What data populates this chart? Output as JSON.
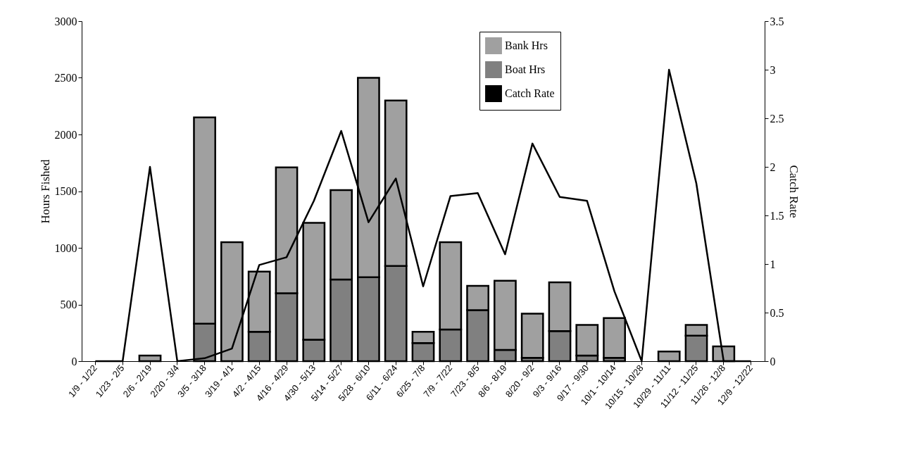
{
  "chart_data": {
    "type": "bar",
    "stacked": true,
    "ylabel": "Hours Fished",
    "y2label": "Catch Rate",
    "categories": [
      "1/9 - 1/22",
      "1/23 - 2/5",
      "2/6 - 2/19",
      "2/20 - 3/4",
      "3/5 - 3/18",
      "3/19 - 4/1",
      "4/2 - 4/15",
      "4/16 - 4/29",
      "4/30 - 5/13",
      "5/14 - 5/27",
      "5/28 - 6/10",
      "6/11 - 6/24",
      "6/25 - 7/8",
      "7/9 - 7/22",
      "7/23 - 8/5",
      "8/6 - 8/19",
      "8/20 - 9/2",
      "9/3 - 9/16",
      "9/17 - 9/30",
      "10/1 - 10/14",
      "10/15 - 10/28",
      "10/29 - 11/11",
      "11/12 - 11/25",
      "11/26 - 12/8",
      "12/9 - 12/22"
    ],
    "series": [
      {
        "name": "Boat Hrs",
        "color": "#808080",
        "values": [
          null,
          null,
          null,
          null,
          330,
          null,
          260,
          600,
          190,
          720,
          740,
          840,
          160,
          280,
          450,
          100,
          30,
          265,
          50,
          30,
          null,
          null,
          225,
          null,
          null
        ]
      },
      {
        "name": "Bank Hrs",
        "color": "#a0a0a0",
        "values": [
          null,
          null,
          50,
          null,
          1820,
          1050,
          530,
          1110,
          1030,
          790,
          1760,
          1460,
          100,
          770,
          215,
          610,
          390,
          430,
          270,
          350,
          null,
          85,
          95,
          130,
          null
        ]
      },
      {
        "name": "Catch Rate",
        "type": "line",
        "axis": "y2",
        "color": "#000000",
        "values": [
          0,
          0,
          2.0,
          0,
          0.03,
          0.13,
          0.99,
          1.07,
          1.65,
          2.37,
          1.43,
          1.88,
          0.77,
          1.7,
          1.73,
          1.1,
          2.24,
          1.69,
          1.65,
          0.72,
          0,
          3.0,
          1.83,
          0,
          0
        ]
      }
    ],
    "ylim": [
      0,
      3000
    ],
    "yticks": [
      0,
      500,
      1000,
      1500,
      2000,
      2500,
      3000
    ],
    "y2lim": [
      0,
      3.5
    ],
    "y2ticks": [
      0,
      0.5,
      1,
      1.5,
      2,
      2.5,
      3,
      3.5
    ],
    "legend": "top"
  }
}
